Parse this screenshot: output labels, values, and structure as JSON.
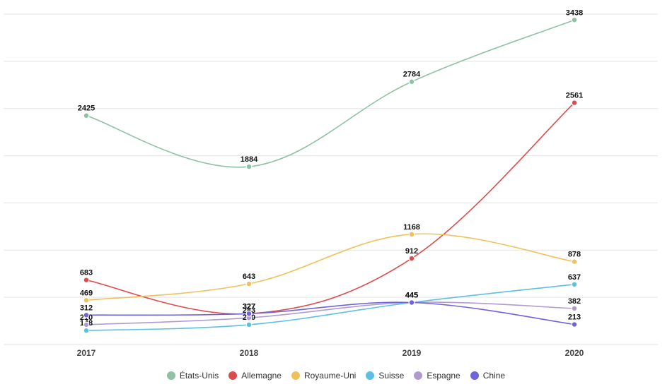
{
  "chart_data": {
    "type": "line",
    "categories": [
      "2017",
      "2018",
      "2019",
      "2020"
    ],
    "ylim": [
      0,
      3500
    ],
    "grid": true,
    "legend_position": "bottom",
    "series": [
      {
        "name": "États-Unis",
        "color": "#8fc1a3",
        "values": [
          2425,
          1884,
          2784,
          3438
        ]
      },
      {
        "name": "Allemagne",
        "color": "#dd4b4b",
        "values": [
          683,
          327,
          912,
          2561
        ]
      },
      {
        "name": "Royaume-Uni",
        "color": "#f0c05a",
        "values": [
          469,
          643,
          1168,
          878
        ]
      },
      {
        "name": "Suisse",
        "color": "#5bc0e3",
        "values": [
          148,
          210,
          445,
          637
        ]
      },
      {
        "name": "Espagne",
        "color": "#b09bd1",
        "values": [
          210,
          283,
          445,
          382
        ]
      },
      {
        "name": "Chine",
        "color": "#6f63dd",
        "values": [
          312,
          327,
          445,
          213
        ]
      }
    ]
  }
}
